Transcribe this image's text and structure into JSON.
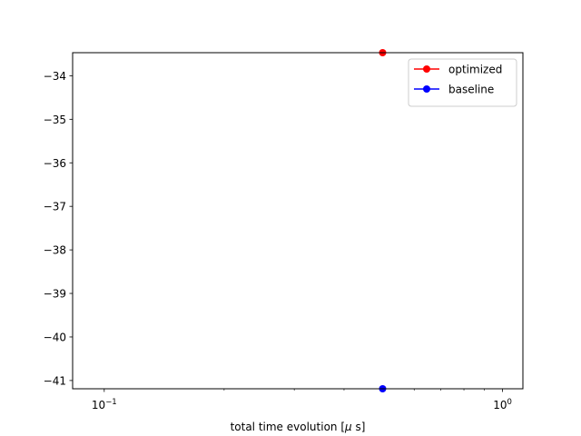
{
  "chart_data": {
    "type": "line",
    "title": "",
    "xlabel": "total time evolution [",
    "xlabel_mu": "μ",
    "xlabel_tail": " s]",
    "ylabel": "",
    "xscale": "log",
    "xlim": [
      0.0833,
      1.125
    ],
    "ylim": [
      -41.19,
      -33.47
    ],
    "x_major_ticks": [
      {
        "value": 0.1,
        "base": "10",
        "exp": "−1"
      },
      {
        "value": 1.0,
        "base": "10",
        "exp": "0"
      }
    ],
    "x_minor_ticks": [
      0.2,
      0.3,
      0.4,
      0.5,
      0.6,
      0.7,
      0.8,
      0.9
    ],
    "y_ticks": [
      {
        "value": -34,
        "label": "−34"
      },
      {
        "value": -35,
        "label": "−35"
      },
      {
        "value": -36,
        "label": "−36"
      },
      {
        "value": -37,
        "label": "−37"
      },
      {
        "value": -38,
        "label": "−38"
      },
      {
        "value": -39,
        "label": "−39"
      },
      {
        "value": -40,
        "label": "−40"
      },
      {
        "value": -41,
        "label": "−41"
      }
    ],
    "grid": false,
    "legend_position": "top-right",
    "series": [
      {
        "name": "optimized",
        "color": "#ff0000",
        "x": [
          0.5
        ],
        "y": [
          -33.47
        ]
      },
      {
        "name": "baseline",
        "color": "#0000ff",
        "x": [
          0.5
        ],
        "y": [
          -41.19
        ]
      }
    ]
  }
}
